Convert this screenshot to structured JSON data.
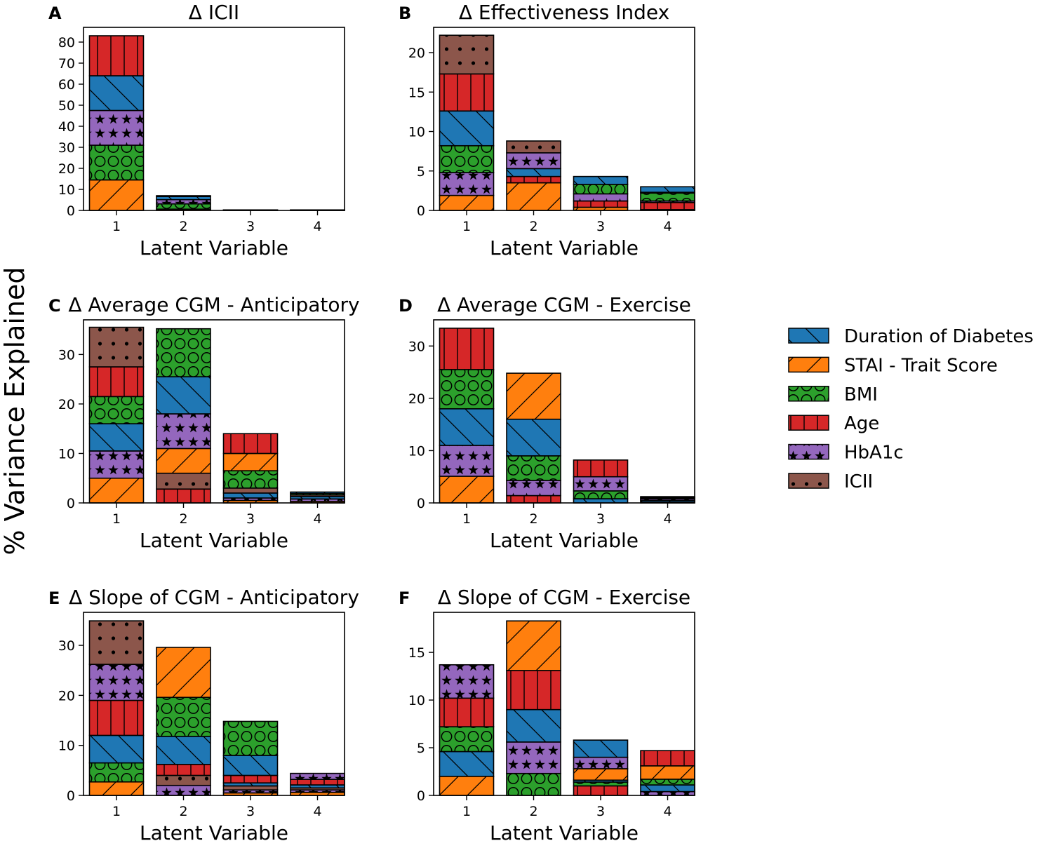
{
  "figure": {
    "ylabel": "% Variance Explained",
    "legend_position": "right-center"
  },
  "legend": {
    "entries": [
      {
        "key": "duration",
        "label": "Duration of Diabetes"
      },
      {
        "key": "stai",
        "label": "STAI - Trait Score"
      },
      {
        "key": "bmi",
        "label": "BMI"
      },
      {
        "key": "age",
        "label": "Age"
      },
      {
        "key": "hba1c",
        "label": "HbA1c"
      },
      {
        "key": "icii",
        "label": "ICII"
      }
    ]
  },
  "series_styles": {
    "stai": {
      "color": "#ff7f0e",
      "hatch": "slash"
    },
    "bmi": {
      "color": "#2ca02c",
      "hatch": "circle"
    },
    "hba1c": {
      "color": "#9467bd",
      "hatch": "star"
    },
    "duration": {
      "color": "#1f77b4",
      "hatch": "backslash"
    },
    "age": {
      "color": "#d62728",
      "hatch": "vertical"
    },
    "icii": {
      "color": "#8c564b",
      "hatch": "dot"
    }
  },
  "chart_data": [
    {
      "panel": "A",
      "type": "bar",
      "stacked": true,
      "title": "Δ ICII",
      "xlabel": "Latent Variable",
      "ylabel": "",
      "categories": [
        "1",
        "2",
        "3",
        "4"
      ],
      "ylim": [
        0,
        87
      ],
      "yticks": [
        0,
        10,
        20,
        30,
        40,
        50,
        60,
        70,
        80
      ],
      "series": [
        {
          "name": "STAI - Trait Score",
          "key": "stai",
          "values": [
            14.5,
            0.6,
            0.05,
            0.05
          ]
        },
        {
          "name": "BMI",
          "key": "bmi",
          "values": [
            16.5,
            2.5,
            0.05,
            0.05
          ]
        },
        {
          "name": "HbA1c",
          "key": "hba1c",
          "values": [
            16.5,
            2.0,
            0.05,
            0.05
          ]
        },
        {
          "name": "Duration of Diabetes",
          "key": "duration",
          "values": [
            16.5,
            1.5,
            0.05,
            0.05
          ]
        },
        {
          "name": "Age",
          "key": "age",
          "values": [
            19,
            0.4,
            0.05,
            0.05
          ]
        }
      ]
    },
    {
      "panel": "B",
      "type": "bar",
      "stacked": true,
      "title": "Δ Effectiveness Index",
      "xlabel": "Latent Variable",
      "ylabel": "",
      "categories": [
        "1",
        "2",
        "3",
        "4"
      ],
      "ylim": [
        0,
        23.2
      ],
      "yticks": [
        0,
        5,
        10,
        15,
        20
      ],
      "series": [
        {
          "name": "STAI - Trait Score",
          "key": "stai",
          "values": [
            1.9,
            3.5,
            0.4,
            0.1
          ]
        },
        {
          "name": "Age",
          "key": "age",
          "values": [
            0,
            0.8,
            0.8,
            0.9
          ]
        },
        {
          "name": "Duration of Diabetes",
          "key": "duration",
          "values": [
            0,
            1.0,
            0,
            0
          ]
        },
        {
          "name": "HbA1c",
          "key": "hba1c",
          "values": [
            2.9,
            2.0,
            0.9,
            0.2
          ]
        },
        {
          "name": "BMI",
          "key": "bmi",
          "values": [
            3.4,
            0,
            1.2,
            1.0
          ]
        },
        {
          "name": "ICII",
          "key": "icii",
          "values": [
            0,
            1.5,
            0,
            0.1
          ]
        },
        {
          "name": "Duration of Diabetes",
          "key": "duration",
          "values": [
            4.4,
            0,
            1.0,
            0.7
          ]
        },
        {
          "name": "Age",
          "key": "age",
          "values": [
            4.7,
            0,
            0,
            0
          ]
        },
        {
          "name": "ICII",
          "key": "icii",
          "values": [
            4.9,
            0,
            0,
            0
          ]
        }
      ]
    },
    {
      "panel": "C",
      "type": "bar",
      "stacked": true,
      "title": "Δ Average CGM - Anticipatory",
      "xlabel": "Latent Variable",
      "ylabel": "",
      "categories": [
        "1",
        "2",
        "3",
        "4"
      ],
      "ylim": [
        0,
        37
      ],
      "yticks": [
        0,
        10,
        20,
        30
      ],
      "series": [
        {
          "name": "STAI - Trait Score",
          "key": "stai",
          "values": [
            5.0,
            0,
            0.5,
            0.3
          ]
        },
        {
          "name": "Age",
          "key": "age",
          "values": [
            0,
            2.8,
            0,
            0
          ]
        },
        {
          "name": "HbA1c",
          "key": "hba1c",
          "values": [
            5.5,
            0,
            0.5,
            0.5
          ]
        },
        {
          "name": "ICII",
          "key": "icii",
          "values": [
            0,
            3.2,
            0,
            0
          ]
        },
        {
          "name": "Duration of Diabetes",
          "key": "duration",
          "values": [
            5.5,
            0,
            1.0,
            0.5
          ]
        },
        {
          "name": "STAI - Trait Score",
          "key": "stai",
          "values": [
            0,
            5.0,
            0,
            0
          ]
        },
        {
          "name": "ICII",
          "key": "icii",
          "values": [
            0,
            0,
            1.0,
            0.3
          ]
        },
        {
          "name": "HbA1c",
          "key": "hba1c",
          "values": [
            0,
            7.0,
            0,
            0
          ]
        },
        {
          "name": "BMI",
          "key": "bmi",
          "values": [
            5.5,
            0,
            3.5,
            0.3
          ]
        },
        {
          "name": "Duration of Diabetes",
          "key": "duration",
          "values": [
            0,
            7.5,
            0,
            0.3
          ]
        },
        {
          "name": "STAI - Trait Score",
          "key": "stai",
          "values": [
            0,
            0,
            3.5,
            0
          ]
        },
        {
          "name": "Age",
          "key": "age",
          "values": [
            6.0,
            0,
            4.0,
            0
          ]
        },
        {
          "name": "BMI",
          "key": "bmi",
          "values": [
            0,
            9.7,
            0,
            0
          ]
        },
        {
          "name": "ICII",
          "key": "icii",
          "values": [
            8.0,
            0,
            0,
            0
          ]
        }
      ]
    },
    {
      "panel": "D",
      "type": "bar",
      "stacked": true,
      "title": "Δ Average CGM - Exercise",
      "xlabel": "Latent Variable",
      "ylabel": "",
      "categories": [
        "1",
        "2",
        "3",
        "4"
      ],
      "ylim": [
        0,
        35
      ],
      "yticks": [
        0,
        10,
        20,
        30
      ],
      "series": [
        {
          "name": "STAI - Trait Score",
          "key": "stai",
          "values": [
            5.1,
            0,
            0,
            0.2
          ]
        },
        {
          "name": "Age",
          "key": "age",
          "values": [
            0,
            1.4,
            0,
            0
          ]
        },
        {
          "name": "Duration of Diabetes",
          "key": "duration",
          "values": [
            0,
            0,
            0.8,
            0.3
          ]
        },
        {
          "name": "HbA1c",
          "key": "hba1c",
          "values": [
            5.9,
            2.9,
            0,
            0.3
          ]
        },
        {
          "name": "BMI",
          "key": "bmi",
          "values": [
            0,
            4.7,
            1.5,
            0.2
          ]
        },
        {
          "name": "Duration of Diabetes",
          "key": "duration",
          "values": [
            7.0,
            7.0,
            0,
            0
          ]
        },
        {
          "name": "HbA1c",
          "key": "hba1c",
          "values": [
            0,
            0,
            2.7,
            0
          ]
        },
        {
          "name": "BMI",
          "key": "bmi",
          "values": [
            7.5,
            0,
            0,
            0
          ]
        },
        {
          "name": "Age",
          "key": "age",
          "values": [
            7.9,
            0,
            3.2,
            0
          ]
        },
        {
          "name": "STAI - Trait Score",
          "key": "stai",
          "values": [
            0,
            8.8,
            0,
            0.2
          ]
        }
      ]
    },
    {
      "panel": "E",
      "type": "bar",
      "stacked": true,
      "title": "Δ Slope of  CGM - Anticipatory",
      "xlabel": "Latent Variable",
      "ylabel": "",
      "categories": [
        "1",
        "2",
        "3",
        "4"
      ],
      "ylim": [
        0,
        36.6
      ],
      "yticks": [
        0,
        10,
        20,
        30
      ],
      "series": [
        {
          "name": "STAI - Trait Score",
          "key": "stai",
          "values": [
            2.7,
            0,
            0.5,
            0.6
          ]
        },
        {
          "name": "HbA1c",
          "key": "hba1c",
          "values": [
            0,
            2.0,
            0.6,
            0.5
          ]
        },
        {
          "name": "BMI",
          "key": "bmi",
          "values": [
            3.8,
            0,
            0,
            0
          ]
        },
        {
          "name": "ICII",
          "key": "icii",
          "values": [
            0,
            2.0,
            0.8,
            0.4
          ]
        },
        {
          "name": "Duration of Diabetes",
          "key": "duration",
          "values": [
            5.5,
            0,
            0.6,
            0.6
          ]
        },
        {
          "name": "Age",
          "key": "age",
          "values": [
            7.0,
            2.2,
            1.5,
            1.1
          ]
        },
        {
          "name": "Duration of Diabetes",
          "key": "duration",
          "values": [
            0,
            5.6,
            4.0,
            0
          ]
        },
        {
          "name": "HbA1c",
          "key": "hba1c",
          "values": [
            7.2,
            0,
            0,
            1.2
          ]
        },
        {
          "name": "BMI",
          "key": "bmi",
          "values": [
            0,
            7.8,
            6.8,
            0
          ]
        },
        {
          "name": "ICII",
          "key": "icii",
          "values": [
            8.7,
            0,
            0,
            0
          ]
        },
        {
          "name": "STAI - Trait Score",
          "key": "stai",
          "values": [
            0,
            10.0,
            0,
            0
          ]
        }
      ]
    },
    {
      "panel": "F",
      "type": "bar",
      "stacked": true,
      "title": "Δ Slope of  CGM - Exercise",
      "xlabel": "Latent Variable",
      "ylabel": "",
      "categories": [
        "1",
        "2",
        "3",
        "4"
      ],
      "ylim": [
        0,
        19.2
      ],
      "yticks": [
        0,
        5,
        10,
        15
      ],
      "series": [
        {
          "name": "STAI - Trait Score",
          "key": "stai",
          "values": [
            2.0,
            0,
            0,
            0
          ]
        },
        {
          "name": "Age",
          "key": "age",
          "values": [
            0,
            0,
            1.0,
            0
          ]
        },
        {
          "name": "HbA1c",
          "key": "hba1c",
          "values": [
            0,
            0,
            0,
            0.4
          ]
        },
        {
          "name": "BMI",
          "key": "bmi",
          "values": [
            0,
            2.3,
            0.4,
            0
          ]
        },
        {
          "name": "Duration of Diabetes",
          "key": "duration",
          "values": [
            2.6,
            0,
            0.2,
            0.7
          ]
        },
        {
          "name": "STAI - Trait Score",
          "key": "stai",
          "values": [
            0,
            0,
            1.2,
            0
          ]
        },
        {
          "name": "BMI",
          "key": "bmi",
          "values": [
            2.6,
            0,
            0,
            0.6
          ]
        },
        {
          "name": "HbA1c",
          "key": "hba1c",
          "values": [
            0,
            3.3,
            1.2,
            0
          ]
        },
        {
          "name": "STAI - Trait Score",
          "key": "stai",
          "values": [
            0,
            0,
            0,
            1.4
          ]
        },
        {
          "name": "Duration of Diabetes",
          "key": "duration",
          "values": [
            0,
            3.4,
            1.8,
            0
          ]
        },
        {
          "name": "Age",
          "key": "age",
          "values": [
            3.0,
            4.1,
            0,
            1.6
          ]
        },
        {
          "name": "HbA1c",
          "key": "hba1c",
          "values": [
            3.5,
            0,
            0,
            0
          ]
        },
        {
          "name": "STAI - Trait Score",
          "key": "stai",
          "values": [
            0,
            5.2,
            0,
            0
          ]
        }
      ]
    }
  ]
}
